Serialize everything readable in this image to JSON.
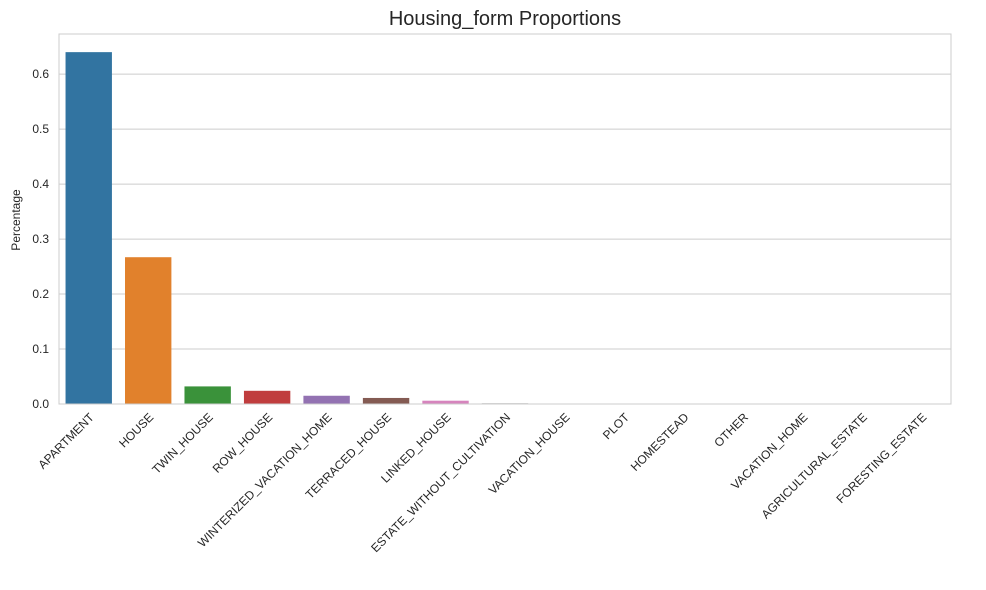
{
  "chart_data": {
    "type": "bar",
    "title": "Housing_form Proportions",
    "xlabel": "",
    "ylabel": "Percentage",
    "ylim": [
      0,
      0.673
    ],
    "yticks": [
      0.0,
      0.1,
      0.2,
      0.3,
      0.4,
      0.5,
      0.6
    ],
    "ytick_labels": [
      "0.0",
      "0.1",
      "0.2",
      "0.3",
      "0.4",
      "0.5",
      "0.6"
    ],
    "grid": "horizontal",
    "categories": [
      "APARTMENT",
      "HOUSE",
      "TWIN_HOUSE",
      "ROW_HOUSE",
      "WINTERIZED_VACATION_HOME",
      "TERRACED_HOUSE",
      "LINKED_HOUSE",
      "ESTATE_WITHOUT_CULTIVATION",
      "VACATION_HOUSE",
      "PLOT",
      "HOMESTEAD",
      "OTHER",
      "VACATION_HOME",
      "AGRICULTURAL_ESTATE",
      "FORESTING_ESTATE"
    ],
    "values": [
      0.64,
      0.267,
      0.032,
      0.024,
      0.015,
      0.011,
      0.006,
      0.0012,
      0.0006,
      0.0004,
      0.0003,
      0.0002,
      0.0002,
      0.0001,
      0.0001
    ],
    "colors": [
      "#3274a1",
      "#e1812c",
      "#3a923a",
      "#c03d3e",
      "#9372b2",
      "#845b53",
      "#d684bd",
      "#7f7f7f",
      "#a9aa35",
      "#2eb0c2",
      "#3274a1",
      "#e1812c",
      "#3a923a",
      "#c03d3e",
      "#9372b2"
    ]
  }
}
